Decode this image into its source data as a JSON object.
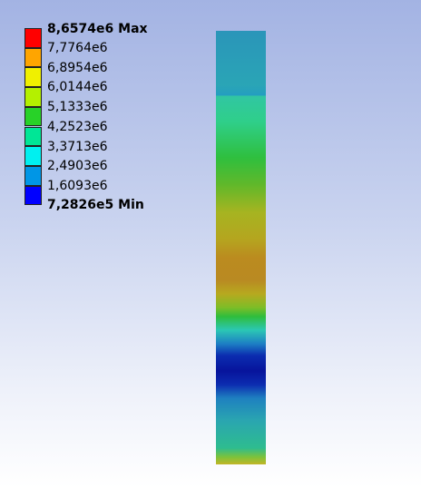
{
  "legend": {
    "labels": [
      "8,6574e6 Max",
      "7,7764e6",
      "6,8954e6",
      "6,0144e6",
      "5,1333e6",
      "4,2523e6",
      "3,3713e6",
      "2,4903e6",
      "1,6093e6",
      "7,2826e5 Min"
    ]
  }
}
